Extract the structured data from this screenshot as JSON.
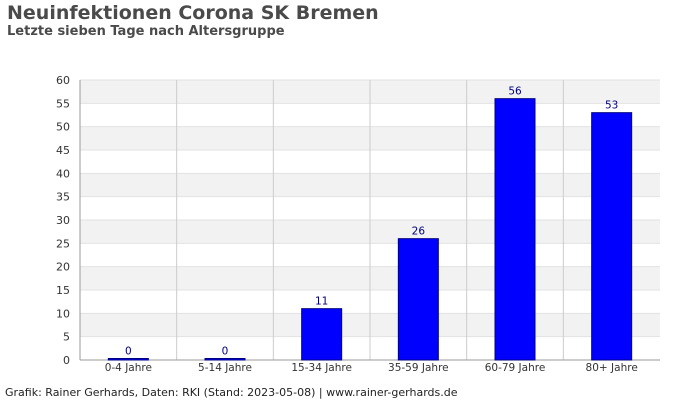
{
  "header": {
    "title": "Neuinfektionen Corona SK Bremen",
    "subtitle": "Letzte sieben Tage nach Altersgruppe"
  },
  "footer": {
    "credit": "Grafik: Rainer Gerhards, Daten: RKI (Stand: 2023-05-08) | www.rainer-gerhards.de"
  },
  "colors": {
    "bar_fill": "#0000ff",
    "bar_stroke": "#000080",
    "band": "#f2f2f2",
    "grid": "#cccccc",
    "label": "#000080"
  },
  "chart_data": {
    "type": "bar",
    "categories": [
      "0-4 Jahre",
      "5-14 Jahre",
      "15-34 Jahre",
      "35-59 Jahre",
      "60-79 Jahre",
      "80+ Jahre"
    ],
    "values": [
      0,
      0,
      11,
      26,
      56,
      53
    ],
    "ylim": [
      0,
      60
    ],
    "yticks": [
      0,
      5,
      10,
      15,
      20,
      25,
      30,
      35,
      40,
      45,
      50,
      55,
      60
    ],
    "grid": true,
    "data_labels": true
  }
}
